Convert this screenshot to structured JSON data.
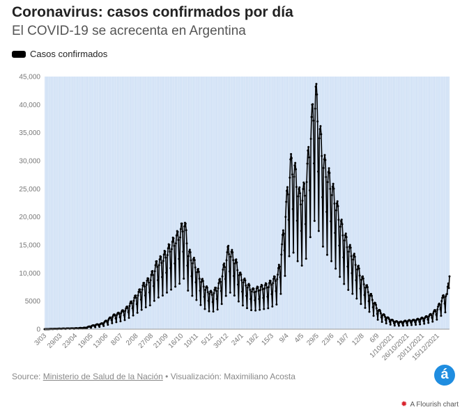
{
  "header": {
    "title": "Coronavirus: casos confirmados por día",
    "subtitle": "El COVID-19 se acrecenta en Argentina"
  },
  "legend": {
    "label": "Casos confirmados",
    "color": "#000000"
  },
  "footer": {
    "source_prefix": "Source:",
    "source_name": "Ministerio de Salud de la Nación",
    "separator": "•",
    "viz_credit": "Visualización: Maximiliano Acosta",
    "logo_letter": "á",
    "flourish_label": "A Flourish chart"
  },
  "colors": {
    "plot_background": "#cfe0f5",
    "band_stripe": "#ffffff",
    "line": "#000000",
    "brand": "#1f8de0",
    "flourish": "#d9232d"
  },
  "chart_data": {
    "type": "line",
    "title": "Coronavirus: casos confirmados por día",
    "subtitle": "El COVID-19 se acrecenta en Argentina",
    "series_name": "Casos confirmados",
    "xlabel": "",
    "ylabel": "",
    "ylim": [
      0,
      45000
    ],
    "yticks": [
      0,
      5000,
      10000,
      15000,
      20000,
      25000,
      30000,
      35000,
      40000,
      45000
    ],
    "ytick_labels": [
      "0",
      "5000",
      "10,000",
      "15,000",
      "20,000",
      "25,000",
      "30,000",
      "35,000",
      "40,000",
      "45,000"
    ],
    "grid": "vertical daily stripes",
    "legend_position": "top-left",
    "x_start": "2020-03-03",
    "x_end": "2022-01-04",
    "xticks": [
      {
        "date": "2020-03-03",
        "label": "3/03"
      },
      {
        "date": "2020-03-29",
        "label": "29/03"
      },
      {
        "date": "2020-04-23",
        "label": "23/04"
      },
      {
        "date": "2020-05-19",
        "label": "19/05"
      },
      {
        "date": "2020-06-13",
        "label": "13/06"
      },
      {
        "date": "2020-07-08",
        "label": "8/07"
      },
      {
        "date": "2020-08-02",
        "label": "2/08"
      },
      {
        "date": "2020-08-27",
        "label": "27/08"
      },
      {
        "date": "2020-09-21",
        "label": "21/09"
      },
      {
        "date": "2020-10-16",
        "label": "16/10"
      },
      {
        "date": "2020-11-10",
        "label": "10/11"
      },
      {
        "date": "2020-12-05",
        "label": "5/12"
      },
      {
        "date": "2020-12-30",
        "label": "30/12"
      },
      {
        "date": "2021-01-24",
        "label": "24/1"
      },
      {
        "date": "2021-02-18",
        "label": "18/2"
      },
      {
        "date": "2021-03-15",
        "label": "15/3"
      },
      {
        "date": "2021-04-09",
        "label": "9/4"
      },
      {
        "date": "2021-05-04",
        "label": "4/5"
      },
      {
        "date": "2021-05-29",
        "label": "29/5"
      },
      {
        "date": "2021-06-23",
        "label": "23/6"
      },
      {
        "date": "2021-07-18",
        "label": "18/7"
      },
      {
        "date": "2021-08-12",
        "label": "12/8"
      },
      {
        "date": "2021-09-06",
        "label": "6/9"
      },
      {
        "date": "2021-10-01",
        "label": "1/10/2021"
      },
      {
        "date": "2021-10-26",
        "label": "26/10/2021"
      },
      {
        "date": "2021-11-20",
        "label": "20/11/2021"
      },
      {
        "date": "2021-12-15",
        "label": "15/12/2021"
      }
    ],
    "points": [
      [
        "2020-03-03",
        1
      ],
      [
        "2020-03-20",
        60
      ],
      [
        "2020-04-05",
        100
      ],
      [
        "2020-04-25",
        150
      ],
      [
        "2020-05-10",
        250
      ],
      [
        "2020-05-25",
        700
      ],
      [
        "2020-06-05",
        900
      ],
      [
        "2020-06-15",
        1500
      ],
      [
        "2020-06-25",
        2300
      ],
      [
        "2020-07-05",
        2700
      ],
      [
        "2020-07-15",
        3300
      ],
      [
        "2020-07-25",
        4500
      ],
      [
        "2020-08-05",
        6000
      ],
      [
        "2020-08-15",
        7500
      ],
      [
        "2020-08-25",
        8500
      ],
      [
        "2020-09-05",
        11000
      ],
      [
        "2020-09-15",
        12000
      ],
      [
        "2020-09-25",
        13500
      ],
      [
        "2020-10-05",
        15000
      ],
      [
        "2020-10-15",
        16500
      ],
      [
        "2020-10-21",
        18300
      ],
      [
        "2020-10-28",
        13000
      ],
      [
        "2020-11-08",
        11000
      ],
      [
        "2020-11-15",
        9000
      ],
      [
        "2020-11-25",
        7000
      ],
      [
        "2020-12-05",
        6000
      ],
      [
        "2020-12-15",
        7000
      ],
      [
        "2020-12-22",
        9000
      ],
      [
        "2021-01-02",
        13500
      ],
      [
        "2021-01-12",
        12000
      ],
      [
        "2021-01-22",
        9000
      ],
      [
        "2021-02-02",
        7500
      ],
      [
        "2021-02-12",
        6500
      ],
      [
        "2021-02-25",
        7000
      ],
      [
        "2021-03-10",
        7500
      ],
      [
        "2021-03-25",
        9000
      ],
      [
        "2021-04-01",
        14000
      ],
      [
        "2021-04-09",
        22000
      ],
      [
        "2021-04-15",
        28000
      ],
      [
        "2021-04-22",
        27000
      ],
      [
        "2021-05-01",
        22000
      ],
      [
        "2021-05-10",
        24000
      ],
      [
        "2021-05-20",
        35000
      ],
      [
        "2021-05-27",
        40000
      ],
      [
        "2021-06-03",
        33000
      ],
      [
        "2021-06-10",
        28000
      ],
      [
        "2021-06-20",
        25000
      ],
      [
        "2021-06-28",
        22000
      ],
      [
        "2021-07-10",
        17000
      ],
      [
        "2021-07-20",
        14000
      ],
      [
        "2021-07-30",
        12000
      ],
      [
        "2021-08-10",
        9000
      ],
      [
        "2021-08-20",
        7000
      ],
      [
        "2021-08-30",
        5000
      ],
      [
        "2021-09-06",
        3500
      ],
      [
        "2021-09-15",
        2500
      ],
      [
        "2021-09-25",
        1800
      ],
      [
        "2021-10-05",
        1300
      ],
      [
        "2021-10-15",
        1200
      ],
      [
        "2021-10-25",
        1400
      ],
      [
        "2021-11-05",
        1500
      ],
      [
        "2021-11-15",
        1700
      ],
      [
        "2021-11-25",
        2000
      ],
      [
        "2021-12-05",
        2500
      ],
      [
        "2021-12-15",
        3500
      ],
      [
        "2021-12-22",
        5000
      ],
      [
        "2021-12-28",
        6000
      ],
      [
        "2021-12-31",
        5600
      ],
      [
        "2022-01-03",
        9400
      ]
    ],
    "weekly_dip_fraction": 0.42,
    "weekday_profile": [
      0.5,
      1.0,
      1.08,
      1.12,
      1.1,
      1.0,
      0.78
    ],
    "final_value": 9400
  }
}
